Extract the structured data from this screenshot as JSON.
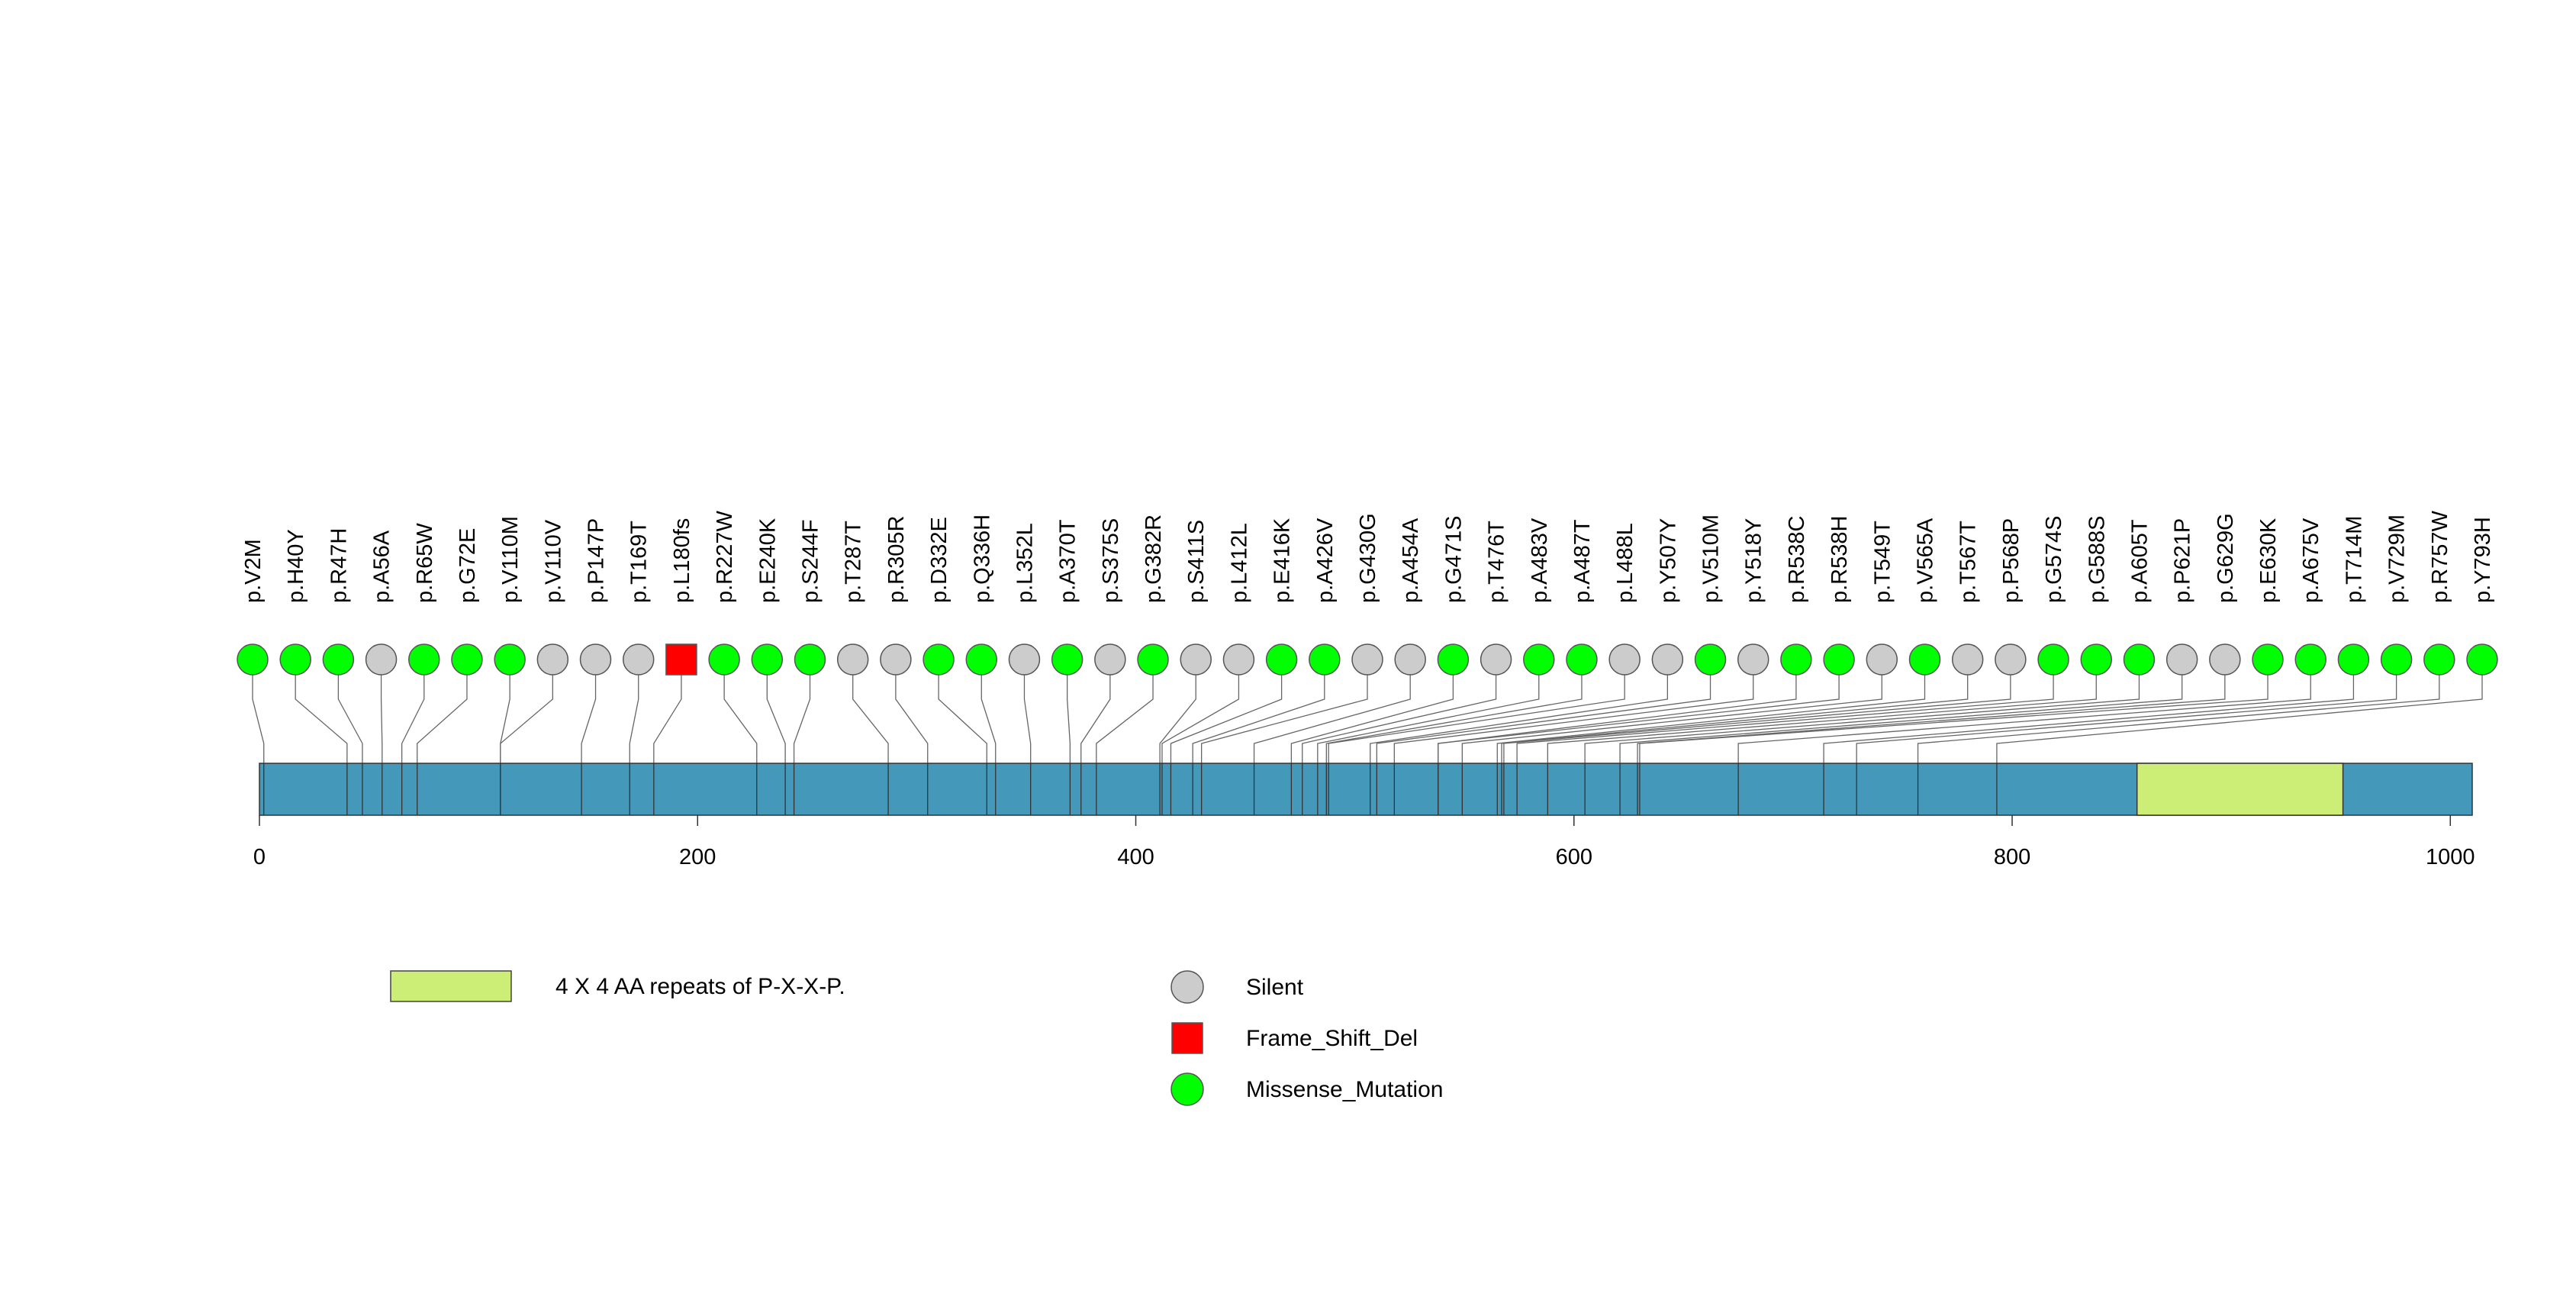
{
  "chart_data": {
    "type": "lollipop",
    "protein_length": 1010,
    "xlim": [
      0,
      1010
    ],
    "x_ticks": [
      0,
      200,
      400,
      600,
      800,
      1000
    ],
    "colors": {
      "protein_bar": "#4499bb",
      "domain": "#ccee77",
      "missense": "#00ff00",
      "silent": "#cccccc",
      "frameshift": "#ff0000",
      "connector": "#666666"
    },
    "domains": [
      {
        "name": "4 X 4 AA repeats of P-X-X-P.",
        "start": 857,
        "end": 951
      }
    ],
    "mutations": [
      {
        "label": "p.V2M",
        "position": 2,
        "type": "Missense_Mutation"
      },
      {
        "label": "p.H40Y",
        "position": 40,
        "type": "Missense_Mutation"
      },
      {
        "label": "p.R47H",
        "position": 47,
        "type": "Missense_Mutation"
      },
      {
        "label": "p.A56A",
        "position": 56,
        "type": "Silent"
      },
      {
        "label": "p.R65W",
        "position": 65,
        "type": "Missense_Mutation"
      },
      {
        "label": "p.G72E",
        "position": 72,
        "type": "Missense_Mutation"
      },
      {
        "label": "p.V110M",
        "position": 110,
        "type": "Missense_Mutation"
      },
      {
        "label": "p.V110V",
        "position": 110,
        "type": "Silent"
      },
      {
        "label": "p.P147P",
        "position": 147,
        "type": "Silent"
      },
      {
        "label": "p.T169T",
        "position": 169,
        "type": "Silent"
      },
      {
        "label": "p.L180fs",
        "position": 180,
        "type": "Frame_Shift_Del"
      },
      {
        "label": "p.R227W",
        "position": 227,
        "type": "Missense_Mutation"
      },
      {
        "label": "p.E240K",
        "position": 240,
        "type": "Missense_Mutation"
      },
      {
        "label": "p.S244F",
        "position": 244,
        "type": "Missense_Mutation"
      },
      {
        "label": "p.T287T",
        "position": 287,
        "type": "Silent"
      },
      {
        "label": "p.R305R",
        "position": 305,
        "type": "Silent"
      },
      {
        "label": "p.D332E",
        "position": 332,
        "type": "Missense_Mutation"
      },
      {
        "label": "p.Q336H",
        "position": 336,
        "type": "Missense_Mutation"
      },
      {
        "label": "p.L352L",
        "position": 352,
        "type": "Silent"
      },
      {
        "label": "p.A370T",
        "position": 370,
        "type": "Missense_Mutation"
      },
      {
        "label": "p.S375S",
        "position": 375,
        "type": "Silent"
      },
      {
        "label": "p.G382R",
        "position": 382,
        "type": "Missense_Mutation"
      },
      {
        "label": "p.S411S",
        "position": 411,
        "type": "Silent"
      },
      {
        "label": "p.L412L",
        "position": 412,
        "type": "Silent"
      },
      {
        "label": "p.E416K",
        "position": 416,
        "type": "Missense_Mutation"
      },
      {
        "label": "p.A426V",
        "position": 426,
        "type": "Missense_Mutation"
      },
      {
        "label": "p.G430G",
        "position": 430,
        "type": "Silent"
      },
      {
        "label": "p.A454A",
        "position": 454,
        "type": "Silent"
      },
      {
        "label": "p.G471S",
        "position": 471,
        "type": "Missense_Mutation"
      },
      {
        "label": "p.T476T",
        "position": 476,
        "type": "Silent"
      },
      {
        "label": "p.A483V",
        "position": 483,
        "type": "Missense_Mutation"
      },
      {
        "label": "p.A487T",
        "position": 487,
        "type": "Missense_Mutation"
      },
      {
        "label": "p.L488L",
        "position": 488,
        "type": "Silent"
      },
      {
        "label": "p.Y507Y",
        "position": 507,
        "type": "Silent"
      },
      {
        "label": "p.V510M",
        "position": 510,
        "type": "Missense_Mutation"
      },
      {
        "label": "p.Y518Y",
        "position": 518,
        "type": "Silent"
      },
      {
        "label": "p.R538C",
        "position": 538,
        "type": "Missense_Mutation"
      },
      {
        "label": "p.R538H",
        "position": 538,
        "type": "Missense_Mutation"
      },
      {
        "label": "p.T549T",
        "position": 549,
        "type": "Silent"
      },
      {
        "label": "p.V565A",
        "position": 565,
        "type": "Missense_Mutation"
      },
      {
        "label": "p.T567T",
        "position": 567,
        "type": "Silent"
      },
      {
        "label": "p.P568P",
        "position": 568,
        "type": "Silent"
      },
      {
        "label": "p.G574S",
        "position": 574,
        "type": "Missense_Mutation"
      },
      {
        "label": "p.G588S",
        "position": 588,
        "type": "Missense_Mutation"
      },
      {
        "label": "p.A605T",
        "position": 605,
        "type": "Missense_Mutation"
      },
      {
        "label": "p.P621P",
        "position": 621,
        "type": "Silent"
      },
      {
        "label": "p.G629G",
        "position": 629,
        "type": "Silent"
      },
      {
        "label": "p.E630K",
        "position": 630,
        "type": "Missense_Mutation"
      },
      {
        "label": "p.A675V",
        "position": 675,
        "type": "Missense_Mutation"
      },
      {
        "label": "p.T714M",
        "position": 714,
        "type": "Missense_Mutation"
      },
      {
        "label": "p.V729M",
        "position": 729,
        "type": "Missense_Mutation"
      },
      {
        "label": "p.R757W",
        "position": 757,
        "type": "Missense_Mutation"
      },
      {
        "label": "p.Y793H",
        "position": 793,
        "type": "Missense_Mutation"
      }
    ],
    "legend": {
      "domain_label": "4 X 4 AA repeats of P-X-X-P.",
      "types": [
        {
          "type": "Silent",
          "label": "Silent",
          "shape": "circle"
        },
        {
          "type": "Frame_Shift_Del",
          "label": "Frame_Shift_Del",
          "shape": "square"
        },
        {
          "type": "Missense_Mutation",
          "label": "Missense_Mutation",
          "shape": "circle"
        }
      ]
    }
  }
}
